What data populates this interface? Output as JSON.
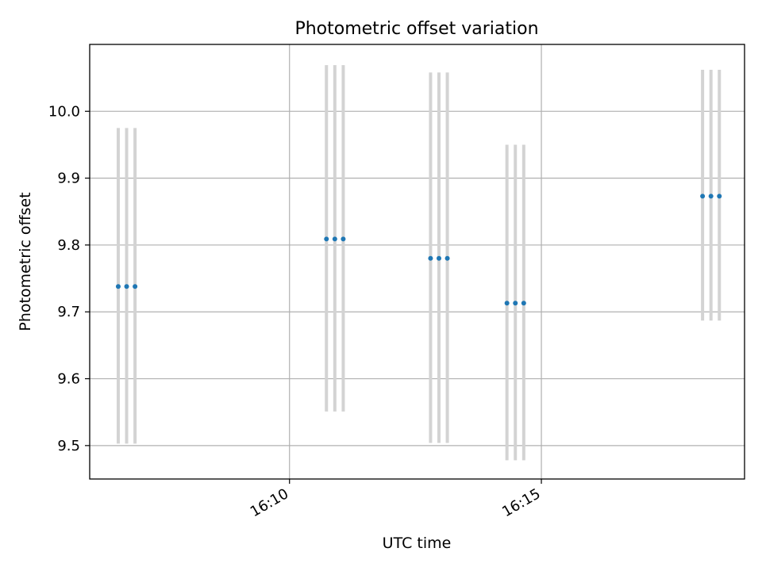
{
  "chart_data": {
    "type": "scatter",
    "title": "Photometric offset variation",
    "xlabel": "UTC time",
    "ylabel": "Photometric offset",
    "xlim": [
      "16:06:02",
      "16:19:02"
    ],
    "ylim": [
      9.45,
      10.1
    ],
    "x_ticks": [
      "16:10",
      "16:15"
    ],
    "y_ticks": [
      "9.5",
      "9.6",
      "9.7",
      "9.8",
      "9.9",
      "10.0"
    ],
    "grid": true,
    "colors": {
      "point": "#1f77b4",
      "errorbar": "#d3d3d3",
      "grid": "#b0b0b0"
    },
    "groups": [
      {
        "times": [
          "16:06:36",
          "16:06:46",
          "16:06:56"
        ],
        "y": 9.738,
        "y_low": 9.503,
        "y_high": 9.975
      },
      {
        "times": [
          "16:10:44",
          "16:10:54",
          "16:11:04"
        ],
        "y": 9.809,
        "y_low": 9.551,
        "y_high": 10.069
      },
      {
        "times": [
          "16:12:48",
          "16:12:58",
          "16:13:08"
        ],
        "y": 9.78,
        "y_low": 9.504,
        "y_high": 10.058
      },
      {
        "times": [
          "16:14:19",
          "16:14:29",
          "16:14:39"
        ],
        "y": 9.713,
        "y_low": 9.478,
        "y_high": 9.95
      },
      {
        "times": [
          "16:18:12",
          "16:18:22",
          "16:18:32"
        ],
        "y": 9.873,
        "y_low": 9.687,
        "y_high": 10.062
      }
    ]
  }
}
